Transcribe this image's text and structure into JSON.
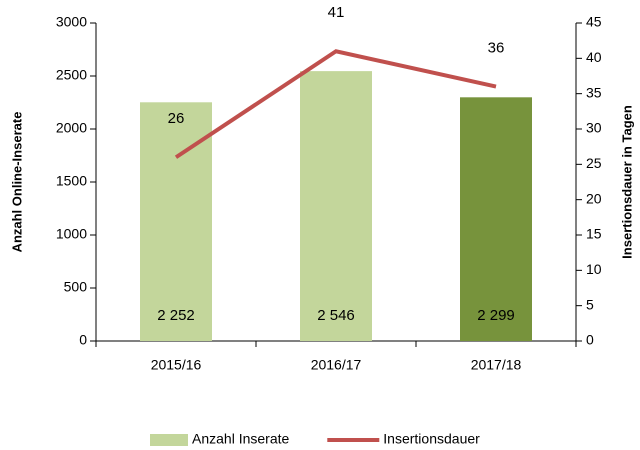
{
  "chart_data": {
    "type": "combo",
    "categories": [
      "2015/16",
      "2016/17",
      "2017/18"
    ],
    "series": [
      {
        "name": "Anzahl Inserate",
        "type": "bar",
        "color": "#c3d69b",
        "colors": [
          "#c3d69b",
          "#c3d69b",
          "#77933c"
        ],
        "values": [
          2252,
          2546,
          2299
        ],
        "value_labels": [
          "2 252",
          "2 546",
          "2 299"
        ]
      },
      {
        "name": "Insertionsdauer",
        "type": "line",
        "axis": "y2",
        "color": "#c0504d",
        "values": [
          26,
          41,
          36
        ]
      }
    ],
    "ylabel": "Anzahl Online-Inserate",
    "y2label": "Insertionsdauer in Tagen",
    "ylim": [
      0,
      3000
    ],
    "yticks": [
      0,
      500,
      1000,
      1500,
      2000,
      2500,
      3000
    ],
    "y2lim": [
      0,
      45
    ],
    "y2ticks": [
      0,
      5,
      10,
      15,
      20,
      25,
      30,
      35,
      40,
      45
    ]
  }
}
